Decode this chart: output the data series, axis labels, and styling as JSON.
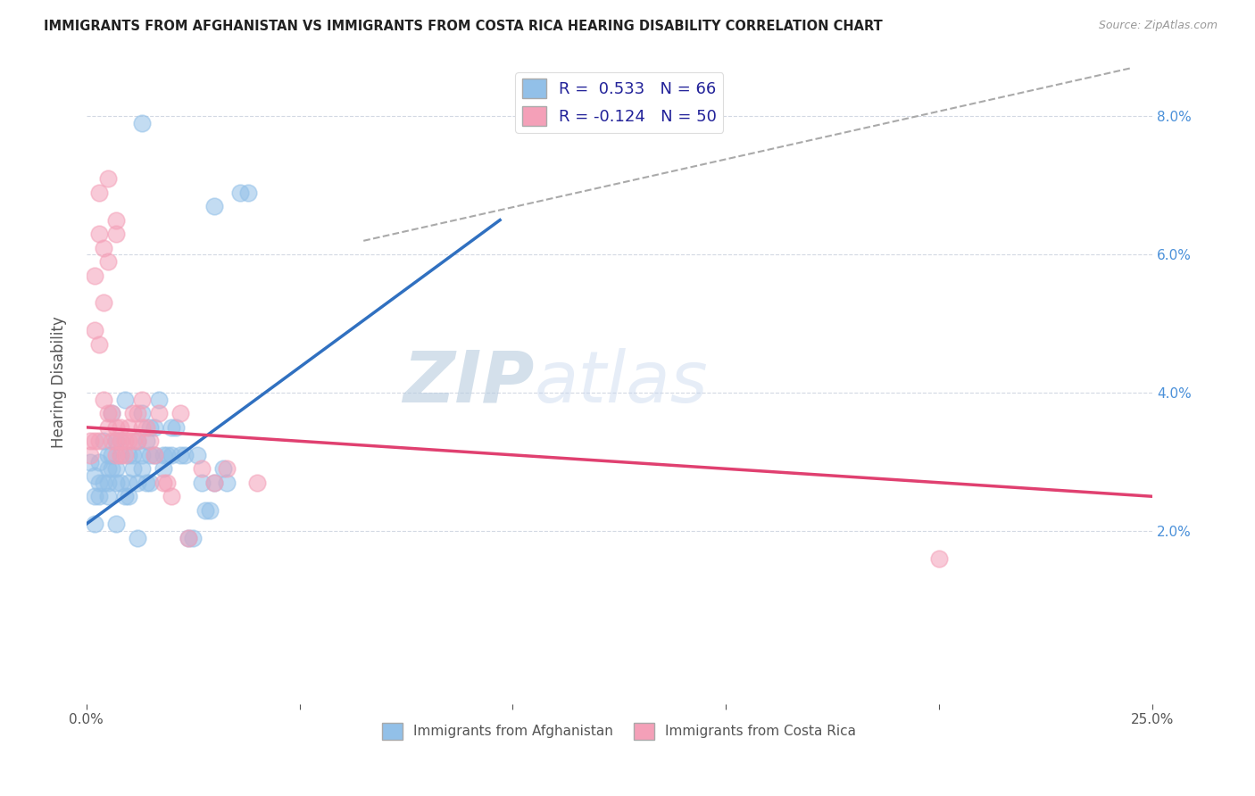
{
  "title": "IMMIGRANTS FROM AFGHANISTAN VS IMMIGRANTS FROM COSTA RICA HEARING DISABILITY CORRELATION CHART",
  "source": "Source: ZipAtlas.com",
  "ylabel": "Hearing Disability",
  "xlim": [
    0.0,
    0.25
  ],
  "ylim": [
    -0.005,
    0.088
  ],
  "xticks": [
    0.0,
    0.05,
    0.1,
    0.15,
    0.2,
    0.25
  ],
  "yticks_right": [
    0.02,
    0.04,
    0.06,
    0.08
  ],
  "ytick_labels_right": [
    "2.0%",
    "4.0%",
    "6.0%",
    "8.0%"
  ],
  "xtick_labels": [
    "0.0%",
    "",
    "",
    "",
    "",
    "25.0%"
  ],
  "color_blue": "#92C0E8",
  "color_pink": "#F4A0B8",
  "color_blue_line": "#3070C0",
  "color_pink_line": "#E04070",
  "watermark_zip": "ZIP",
  "watermark_atlas": "atlas",
  "blue_scatter_x": [
    0.013,
    0.03,
    0.036,
    0.038,
    0.001,
    0.002,
    0.002,
    0.003,
    0.003,
    0.003,
    0.004,
    0.004,
    0.005,
    0.005,
    0.005,
    0.005,
    0.006,
    0.006,
    0.006,
    0.007,
    0.007,
    0.007,
    0.008,
    0.008,
    0.008,
    0.009,
    0.009,
    0.01,
    0.01,
    0.01,
    0.011,
    0.011,
    0.012,
    0.012,
    0.013,
    0.013,
    0.013,
    0.014,
    0.014,
    0.015,
    0.015,
    0.015,
    0.016,
    0.016,
    0.017,
    0.018,
    0.018,
    0.019,
    0.02,
    0.02,
    0.021,
    0.022,
    0.023,
    0.024,
    0.025,
    0.026,
    0.027,
    0.028,
    0.029,
    0.03,
    0.032,
    0.033,
    0.002,
    0.007,
    0.012
  ],
  "blue_scatter_y": [
    0.079,
    0.067,
    0.069,
    0.069,
    0.03,
    0.028,
    0.025,
    0.03,
    0.027,
    0.025,
    0.033,
    0.027,
    0.029,
    0.025,
    0.027,
    0.031,
    0.037,
    0.029,
    0.031,
    0.033,
    0.027,
    0.029,
    0.031,
    0.027,
    0.033,
    0.039,
    0.025,
    0.031,
    0.027,
    0.025,
    0.029,
    0.031,
    0.033,
    0.027,
    0.037,
    0.031,
    0.029,
    0.033,
    0.027,
    0.035,
    0.031,
    0.027,
    0.035,
    0.031,
    0.039,
    0.031,
    0.029,
    0.031,
    0.035,
    0.031,
    0.035,
    0.031,
    0.031,
    0.019,
    0.019,
    0.031,
    0.027,
    0.023,
    0.023,
    0.027,
    0.029,
    0.027,
    0.021,
    0.021,
    0.019
  ],
  "pink_scatter_x": [
    0.001,
    0.001,
    0.002,
    0.002,
    0.002,
    0.003,
    0.003,
    0.003,
    0.004,
    0.004,
    0.004,
    0.005,
    0.005,
    0.005,
    0.006,
    0.006,
    0.007,
    0.007,
    0.007,
    0.007,
    0.008,
    0.008,
    0.008,
    0.009,
    0.009,
    0.01,
    0.01,
    0.011,
    0.011,
    0.012,
    0.012,
    0.013,
    0.013,
    0.014,
    0.015,
    0.016,
    0.017,
    0.018,
    0.019,
    0.02,
    0.022,
    0.024,
    0.027,
    0.03,
    0.033,
    0.04,
    0.2,
    0.003,
    0.005,
    0.007
  ],
  "pink_scatter_y": [
    0.033,
    0.031,
    0.049,
    0.057,
    0.033,
    0.063,
    0.047,
    0.033,
    0.061,
    0.053,
    0.039,
    0.059,
    0.035,
    0.037,
    0.033,
    0.037,
    0.033,
    0.035,
    0.031,
    0.065,
    0.033,
    0.035,
    0.031,
    0.033,
    0.031,
    0.033,
    0.035,
    0.033,
    0.037,
    0.037,
    0.033,
    0.035,
    0.039,
    0.035,
    0.033,
    0.031,
    0.037,
    0.027,
    0.027,
    0.025,
    0.037,
    0.019,
    0.029,
    0.027,
    0.029,
    0.027,
    0.016,
    0.069,
    0.071,
    0.063
  ],
  "blue_line_x": [
    0.0,
    0.097
  ],
  "blue_line_y": [
    0.021,
    0.065
  ],
  "pink_line_x": [
    0.0,
    0.25
  ],
  "pink_line_y": [
    0.035,
    0.025
  ],
  "dashed_line_x": [
    0.065,
    0.245
  ],
  "dashed_line_y": [
    0.062,
    0.087
  ]
}
